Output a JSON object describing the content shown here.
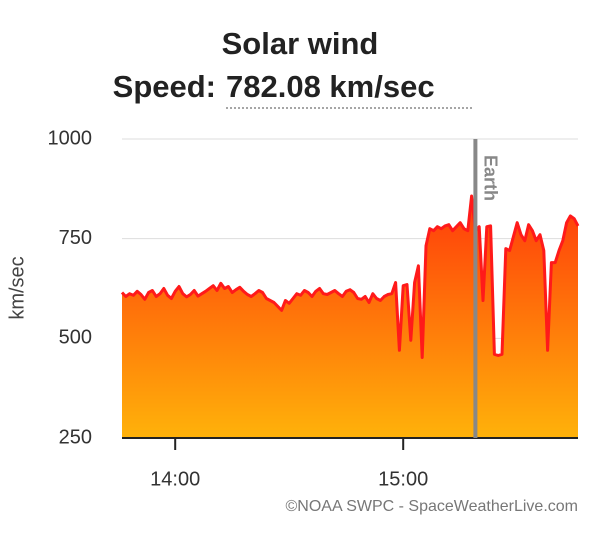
{
  "chart_data": {
    "type": "area",
    "title": "Solar wind",
    "speed_label": "Speed:",
    "speed_value": "782.08 km/sec",
    "ylabel": "km/sec",
    "source": "©NOAA SWPC - SpaceWeatherLive.com",
    "annotation": {
      "label": "Earth",
      "x": "15:19"
    },
    "x": [
      "13:46",
      "13:47",
      "13:48",
      "13:49",
      "13:50",
      "13:51",
      "13:52",
      "13:53",
      "13:54",
      "13:55",
      "13:56",
      "13:57",
      "13:58",
      "13:59",
      "14:00",
      "14:01",
      "14:02",
      "14:03",
      "14:04",
      "14:05",
      "14:06",
      "14:07",
      "14:08",
      "14:09",
      "14:10",
      "14:11",
      "14:12",
      "14:13",
      "14:14",
      "14:15",
      "14:16",
      "14:17",
      "14:18",
      "14:19",
      "14:20",
      "14:21",
      "14:22",
      "14:23",
      "14:24",
      "14:25",
      "14:26",
      "14:27",
      "14:28",
      "14:29",
      "14:30",
      "14:31",
      "14:32",
      "14:33",
      "14:34",
      "14:35",
      "14:36",
      "14:37",
      "14:38",
      "14:39",
      "14:40",
      "14:41",
      "14:42",
      "14:43",
      "14:44",
      "14:45",
      "14:46",
      "14:47",
      "14:48",
      "14:49",
      "14:50",
      "14:51",
      "14:52",
      "14:53",
      "14:54",
      "14:55",
      "14:56",
      "14:57",
      "14:58",
      "14:59",
      "15:00",
      "15:01",
      "15:02",
      "15:03",
      "15:04",
      "15:05",
      "15:06",
      "15:07",
      "15:08",
      "15:09",
      "15:10",
      "15:11",
      "15:12",
      "15:13",
      "15:14",
      "15:15",
      "15:16",
      "15:17",
      "15:18",
      "15:19",
      "15:20",
      "15:21",
      "15:22",
      "15:23",
      "15:24",
      "15:25",
      "15:26",
      "15:27",
      "15:28",
      "15:29",
      "15:30",
      "15:31",
      "15:32",
      "15:33",
      "15:34",
      "15:35",
      "15:36",
      "15:37",
      "15:38",
      "15:39",
      "15:40",
      "15:41",
      "15:42",
      "15:43",
      "15:44",
      "15:45",
      "15:46"
    ],
    "series": [
      {
        "name": "Speed",
        "color": "#ff1a1a",
        "values": [
          615,
          605,
          612,
          608,
          618,
          610,
          598,
          615,
          620,
          605,
          612,
          625,
          608,
          600,
          618,
          630,
          612,
          604,
          610,
          620,
          606,
          612,
          618,
          625,
          632,
          620,
          638,
          625,
          630,
          615,
          622,
          628,
          618,
          610,
          605,
          612,
          620,
          615,
          600,
          595,
          590,
          580,
          570,
          595,
          588,
          600,
          612,
          608,
          620,
          615,
          605,
          618,
          625,
          612,
          610,
          615,
          620,
          612,
          605,
          618,
          622,
          615,
          600,
          598,
          605,
          590,
          612,
          600,
          595,
          605,
          610,
          612,
          640,
          470,
          632,
          635,
          495,
          640,
          682,
          452,
          732,
          775,
          770,
          780,
          775,
          782,
          785,
          770,
          780,
          790,
          775,
          770,
          857,
          770,
          780,
          595,
          780,
          782,
          460,
          457,
          460,
          725,
          720,
          755,
          790,
          760,
          745,
          785,
          770,
          745,
          760,
          720,
          470,
          690,
          690,
          720,
          745,
          790,
          807,
          800,
          782
        ]
      }
    ],
    "xlim": [
      "13:46",
      "15:46"
    ],
    "xticks": [
      "14:00",
      "15:00"
    ],
    "ylim": [
      250,
      1000
    ],
    "yticks": [
      250,
      500,
      750,
      1000
    ],
    "grid": true
  }
}
